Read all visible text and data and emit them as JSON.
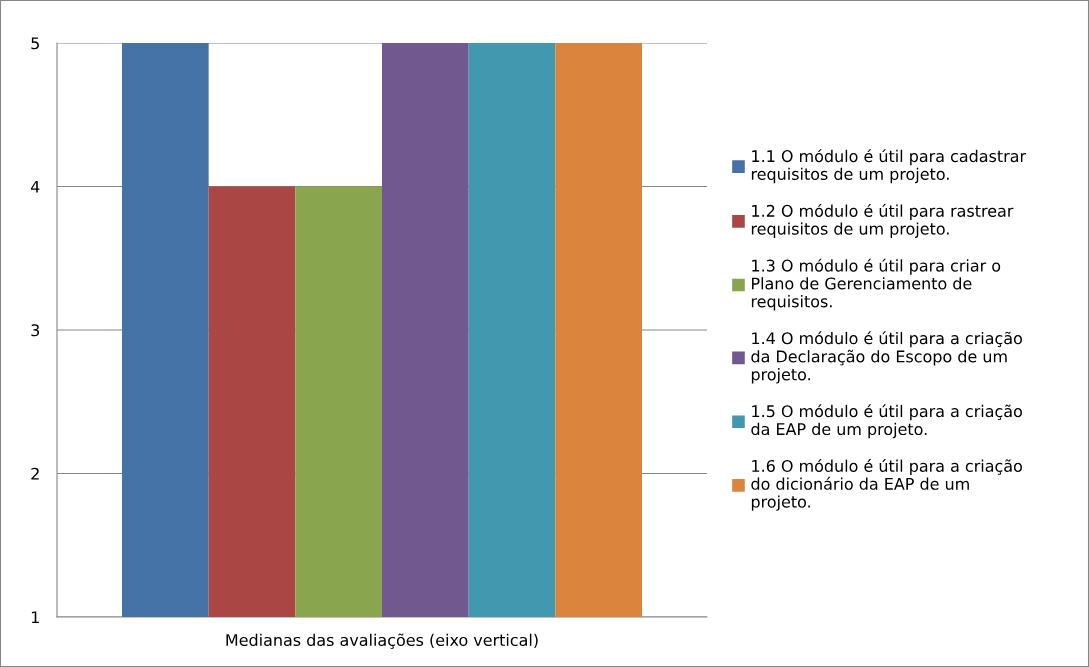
{
  "chart_data": {
    "type": "bar",
    "categories": [
      "Medianas das avaliações (eixo vertical)"
    ],
    "series": [
      {
        "name": "1.1 O módulo é útil para cadastrar\nrequisitos de um projeto.",
        "color": "#4572a7",
        "values": [
          5
        ]
      },
      {
        "name": "1.2 O módulo é útil para rastrear\nrequisitos de um projeto.",
        "color": "#aa4643",
        "values": [
          4
        ]
      },
      {
        "name": "1.3 O módulo é útil para criar o\nPlano de Gerenciamento de\nrequisitos.",
        "color": "#89a54e",
        "values": [
          4
        ]
      },
      {
        "name": "1.4 O módulo é útil para a criação\nda Declaração do Escopo de um\nprojeto.",
        "color": "#71588f",
        "values": [
          5
        ]
      },
      {
        "name": "1.5 O módulo é útil para a criação\nda EAP de um projeto.",
        "color": "#4198af",
        "values": [
          5
        ]
      },
      {
        "name": "1.6 O módulo é útil para a criação\ndo dicionário da EAP de um\nprojeto.",
        "color": "#db843d",
        "values": [
          5
        ]
      }
    ],
    "ylim": [
      1,
      5
    ],
    "yticks": [
      1,
      2,
      3,
      4,
      5
    ],
    "grid": "y",
    "legend": "right"
  }
}
